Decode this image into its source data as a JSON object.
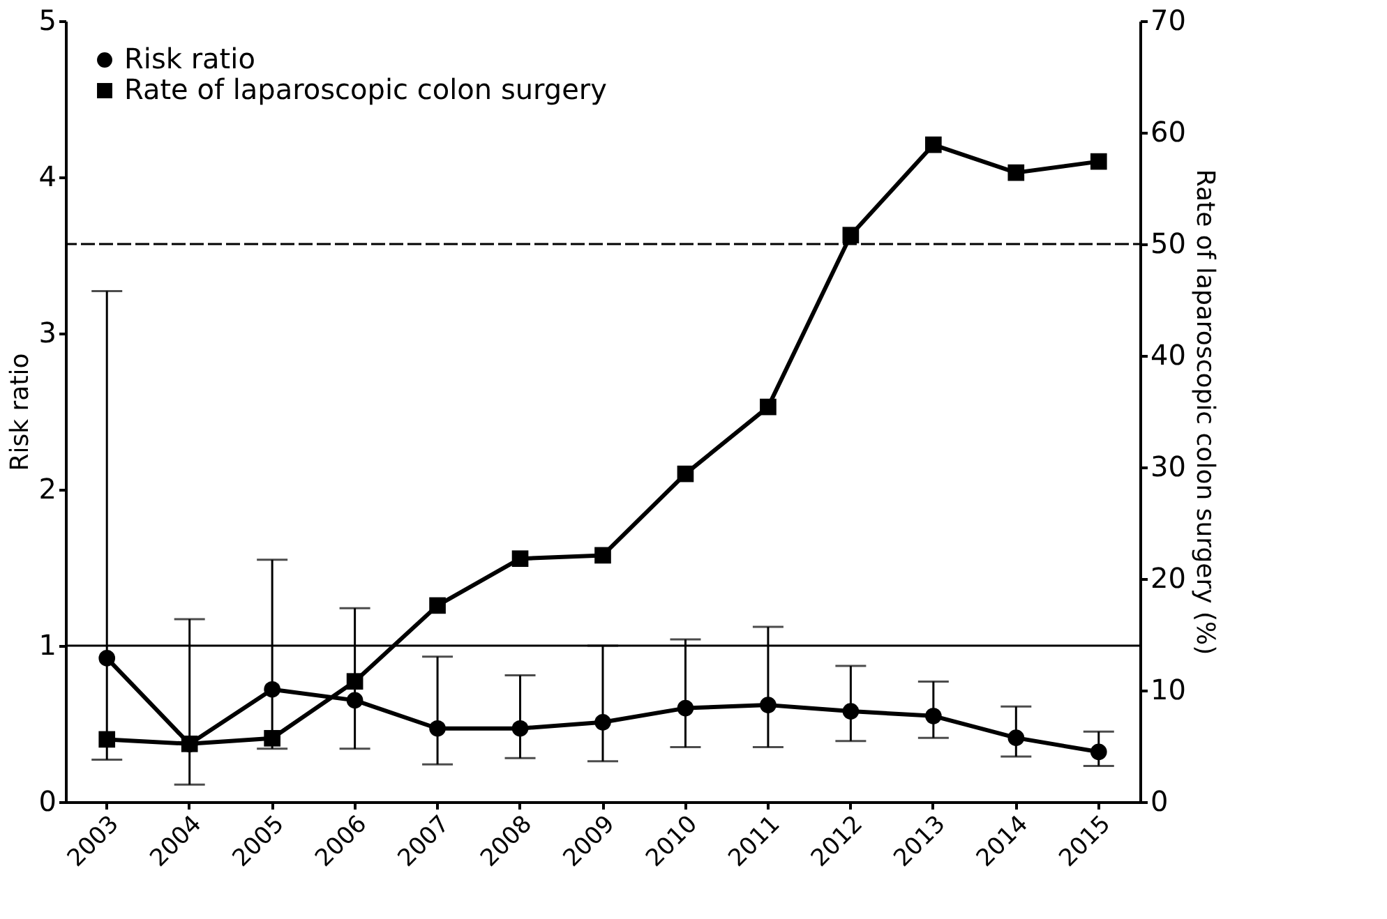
{
  "chart_data": {
    "type": "line",
    "categories": [
      "2003",
      "2004",
      "2005",
      "2006",
      "2007",
      "2008",
      "2009",
      "2010",
      "2011",
      "2012",
      "2013",
      "2014",
      "2015"
    ],
    "ylabel": "Risk ratio",
    "y2label": "Rate of laparoscopic colon surgery (%)",
    "ylim": [
      0,
      5
    ],
    "yticks": [
      0,
      1,
      2,
      3,
      4,
      5
    ],
    "y2lim": [
      0,
      70
    ],
    "y2ticks": [
      0,
      10,
      20,
      30,
      40,
      50,
      60,
      70
    ],
    "series": [
      {
        "name": "Risk ratio",
        "color": "#000000",
        "marker": "circle",
        "values": [
          0.92,
          0.37,
          0.72,
          0.65,
          0.47,
          0.47,
          0.51,
          0.6,
          0.62,
          0.58,
          0.55,
          0.41,
          0.32
        ],
        "errors": [
          [
            0.27,
            3.27
          ],
          [
            0.11,
            1.17
          ],
          [
            0.34,
            1.55
          ],
          [
            0.34,
            1.24
          ],
          [
            0.24,
            0.93
          ],
          [
            0.28,
            0.81
          ],
          [
            0.26,
            1.0
          ],
          [
            0.35,
            1.04
          ],
          [
            0.35,
            1.12
          ],
          [
            0.39,
            0.87
          ],
          [
            0.41,
            0.77
          ],
          [
            0.29,
            0.61
          ],
          [
            0.23,
            0.45
          ]
        ]
      },
      {
        "name": "Rate of laparoscopic colon surgery",
        "color": "#000000",
        "marker": "square",
        "axis": "y2",
        "values": [
          5.6,
          5.2,
          5.7,
          10.8,
          17.6,
          21.8,
          22.1,
          29.4,
          35.4,
          50.8,
          58.9,
          56.4,
          57.4
        ]
      }
    ],
    "ref_lines": [
      {
        "axis": "y",
        "value": 1,
        "line_style": "dotted"
      },
      {
        "axis": "y2",
        "value": 50,
        "line_style": "dashed"
      }
    ],
    "legend": "top left",
    "grid": false
  }
}
